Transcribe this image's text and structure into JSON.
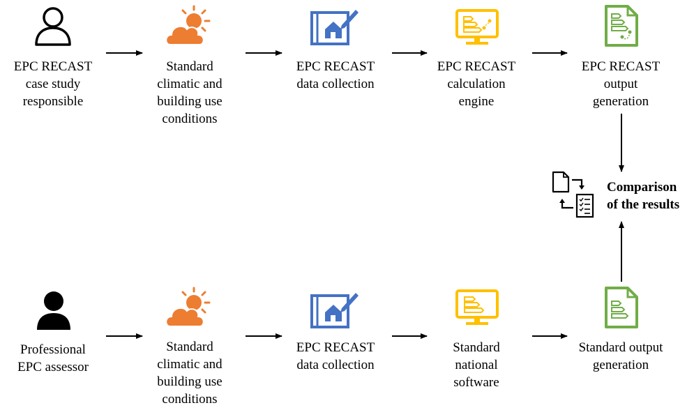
{
  "colors": {
    "orange": "#ED7D31",
    "yellow": "#FFC000",
    "blue": "#4472C4",
    "green": "#70AD47",
    "line": "#000000"
  },
  "top_row": [
    {
      "icon": "user-outline-icon",
      "label": "EPC RECAST\ncase study\nresponsible"
    },
    {
      "icon": "sun-cloud-icon",
      "label": "Standard\nclimatic and\nbuilding use\nconditions"
    },
    {
      "icon": "house-blueprint-icon",
      "label": "EPC RECAST\ndata collection"
    },
    {
      "icon": "monitor-chart-icon",
      "label": "EPC RECAST\ncalculation\nengine"
    },
    {
      "icon": "document-chart-icon",
      "label": "EPC RECAST\noutput\ngeneration"
    }
  ],
  "bottom_row": [
    {
      "icon": "user-filled-icon",
      "label": "Professional\nEPC assessor"
    },
    {
      "icon": "sun-cloud-icon",
      "label": "Standard\nclimatic and\nbuilding use\nconditions"
    },
    {
      "icon": "house-blueprint-icon",
      "label": "EPC RECAST\ndata collection"
    },
    {
      "icon": "monitor-chart-icon",
      "label": "Standard\nnational\nsoftware"
    },
    {
      "icon": "document-chart-icon",
      "label": "Standard output\ngeneration"
    }
  ],
  "comparison": {
    "icon": "compare-documents-icon",
    "label": "Comparison\nof the results"
  }
}
